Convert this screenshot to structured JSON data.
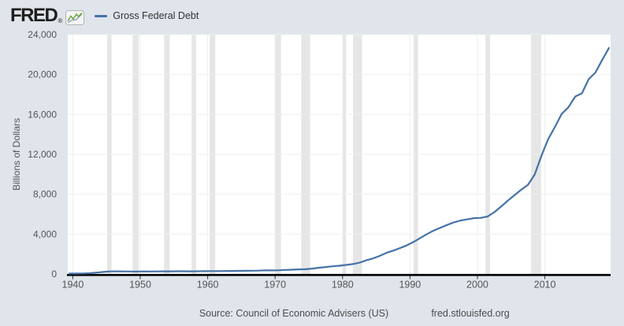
{
  "header": {
    "logo_text": "FRED",
    "logo_registered": "®"
  },
  "legend": {
    "series_label": "Gross Federal Debt",
    "series_color": "#4572a7"
  },
  "footer": {
    "source": "Source: Council of Economic Advisers (US)",
    "site": "fred.stlouisfed.org"
  },
  "chart_data": {
    "type": "line",
    "title": "",
    "xlabel": "",
    "ylabel": "Billions of Dollars",
    "xlim": [
      1939.25,
      2019.75
    ],
    "ylim": [
      0,
      24000
    ],
    "x_ticks": [
      1940,
      1950,
      1960,
      1970,
      1980,
      1990,
      2000,
      2010
    ],
    "y_ticks": [
      0,
      4000,
      8000,
      12000,
      16000,
      20000,
      24000
    ],
    "grid": true,
    "legend_position": "top-left",
    "colors": {
      "page_background": "#dfe5eb",
      "plot_background": "#ffffff",
      "recession_band": "#e6e6e6",
      "gridline": "#efefef",
      "axis_line": "#000000",
      "tick_mark": "#333333",
      "tick_label": "#555555"
    },
    "recession_bands": [
      [
        1945.09,
        1945.75
      ],
      [
        1948.87,
        1949.79
      ],
      [
        1953.54,
        1954.37
      ],
      [
        1957.62,
        1958.29
      ],
      [
        1960.29,
        1961.12
      ],
      [
        1969.95,
        1970.87
      ],
      [
        1973.87,
        1975.2
      ],
      [
        1980.04,
        1980.54
      ],
      [
        1981.54,
        1982.87
      ],
      [
        1990.54,
        1991.2
      ],
      [
        2001.2,
        2001.87
      ],
      [
        2007.95,
        2009.45
      ]
    ],
    "series": [
      {
        "name": "Gross Federal Debt",
        "color": "#4572a7",
        "units": "Billions of Dollars",
        "x": [
          1939,
          1940,
          1941,
          1942,
          1943,
          1944,
          1945,
          1946,
          1947,
          1948,
          1949,
          1950,
          1951,
          1952,
          1953,
          1954,
          1955,
          1956,
          1957,
          1958,
          1959,
          1960,
          1961,
          1962,
          1963,
          1964,
          1965,
          1966,
          1967,
          1968,
          1969,
          1970,
          1971,
          1972,
          1973,
          1974,
          1975,
          1976,
          1977,
          1978,
          1979,
          1980,
          1981,
          1982,
          1983,
          1984,
          1985,
          1986,
          1987,
          1988,
          1989,
          1990,
          1991,
          1992,
          1993,
          1994,
          1995,
          1996,
          1997,
          1998,
          1999,
          2000,
          2001,
          2002,
          2003,
          2004,
          2005,
          2006,
          2007,
          2008,
          2009,
          2010,
          2011,
          2012,
          2013,
          2014,
          2015,
          2016,
          2017,
          2018,
          2019
        ],
        "values": [
          48.2,
          50.7,
          57.5,
          79.2,
          142.6,
          204.1,
          260.1,
          271.0,
          257.1,
          252.0,
          252.6,
          256.9,
          255.3,
          259.1,
          266.0,
          270.8,
          274.4,
          272.7,
          272.3,
          279.7,
          287.5,
          290.5,
          292.6,
          302.9,
          310.3,
          316.1,
          322.3,
          328.5,
          340.4,
          368.7,
          365.8,
          380.9,
          408.2,
          435.9,
          466.3,
          483.9,
          541.9,
          629.0,
          706.4,
          776.6,
          829.5,
          909.0,
          994.8,
          1137.3,
          1371.7,
          1564.6,
          1817.4,
          2120.5,
          2346.0,
          2601.1,
          2867.8,
          3206.3,
          3598.2,
          4001.8,
          4351.0,
          4643.3,
          4920.6,
          5181.5,
          5369.2,
          5478.2,
          5605.5,
          5628.7,
          5769.9,
          6198.4,
          6760.0,
          7354.7,
          7905.3,
          8451.4,
          8950.7,
          9986.1,
          11875.9,
          13528.8,
          14764.2,
          16050.9,
          16719.4,
          17794.5,
          18120.1,
          19539.5,
          20205.7,
          21462.3,
          22669.5
        ]
      }
    ]
  }
}
